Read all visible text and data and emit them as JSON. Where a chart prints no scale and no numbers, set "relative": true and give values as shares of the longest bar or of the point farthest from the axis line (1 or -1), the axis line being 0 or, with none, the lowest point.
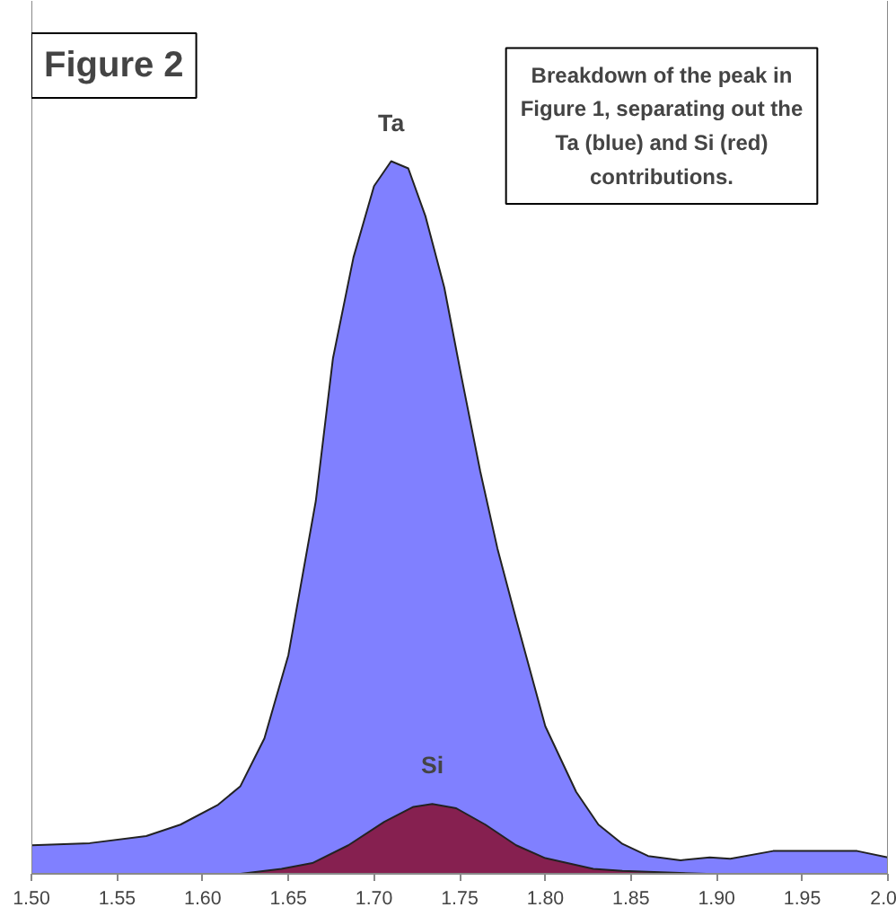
{
  "chart_data": {
    "type": "area",
    "title": "Figure 2",
    "relative": true,
    "annotations": [
      "Breakdown of the peak in Figure 1, separating out the Ta (blue) and Si (red) contributions."
    ],
    "xlim": [
      1.5,
      2.0
    ],
    "xticks": [
      {
        "value": 1.5,
        "label": "1.50"
      },
      {
        "value": 1.55,
        "label": "1.55"
      },
      {
        "value": 1.6,
        "label": "1.60"
      },
      {
        "value": 1.65,
        "label": "1.65"
      },
      {
        "value": 1.7,
        "label": "1.70"
      },
      {
        "value": 1.75,
        "label": "1.75"
      },
      {
        "value": 1.8,
        "label": "1.80"
      },
      {
        "value": 1.85,
        "label": "1.85"
      },
      {
        "value": 1.9,
        "label": "1.90"
      },
      {
        "value": 1.95,
        "label": "1.95"
      },
      {
        "value": 2.0,
        "label": "2.0"
      }
    ],
    "grid": false,
    "tick_labels": "x",
    "series": [
      {
        "name": "Ta",
        "color": "#8080ff",
        "x": [
          1.5,
          1.534,
          1.567,
          1.587,
          1.609,
          1.622,
          1.636,
          1.65,
          1.666,
          1.676,
          1.688,
          1.7,
          1.71,
          1.72,
          1.73,
          1.741,
          1.751,
          1.762,
          1.772,
          1.783,
          1.8,
          1.818,
          1.831,
          1.845,
          1.86,
          1.879,
          1.896,
          1.908,
          1.933,
          1.982,
          2.0
        ],
        "values": [
          0.04,
          0.043,
          0.053,
          0.069,
          0.097,
          0.123,
          0.19,
          0.307,
          0.523,
          0.723,
          0.865,
          0.965,
          1.0,
          0.99,
          0.923,
          0.823,
          0.698,
          0.565,
          0.457,
          0.357,
          0.207,
          0.115,
          0.069,
          0.042,
          0.025,
          0.019,
          0.023,
          0.021,
          0.032,
          0.032,
          0.023
        ]
      },
      {
        "name": "Si",
        "color": "#862050",
        "x": [
          1.5,
          1.622,
          1.646,
          1.664,
          1.685,
          1.706,
          1.723,
          1.734,
          1.748,
          1.765,
          1.783,
          1.8,
          1.828,
          1.845,
          1.894
        ],
        "values": [
          0,
          0,
          0.007,
          0.015,
          0.04,
          0.073,
          0.094,
          0.098,
          0.092,
          0.069,
          0.04,
          0.022,
          0.007,
          0.004,
          0
        ]
      }
    ]
  }
}
